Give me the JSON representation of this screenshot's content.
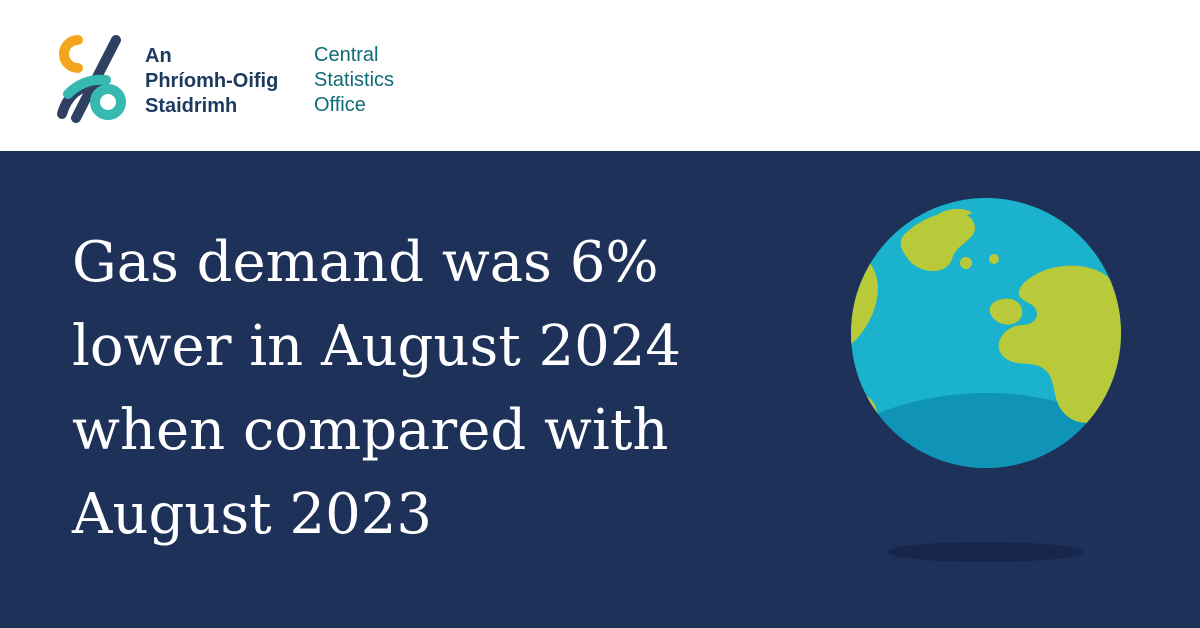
{
  "logo": {
    "irish_lines": [
      "An",
      "Phríomh-Oifig",
      "Staidrimh"
    ],
    "english_lines": [
      "Central",
      "Statistics",
      "Office"
    ],
    "icon": "cso-infinity-logo-icon",
    "colors": {
      "navy": "#2f4062",
      "orange": "#f3a51c",
      "teal": "#37b9b2",
      "text_dark": "#1d3a5f",
      "text_teal": "#0f6b77"
    }
  },
  "banner": {
    "headline_lines": [
      "Gas demand was 6%",
      "lower in August 2024",
      "when compared with",
      "August 2023"
    ],
    "background": "#1e3158",
    "illustration": "globe-icon",
    "globe_colors": {
      "ocean": "#1ab2cc",
      "ocean_shade": "#0f93b6",
      "land": "#b8c93a"
    }
  }
}
